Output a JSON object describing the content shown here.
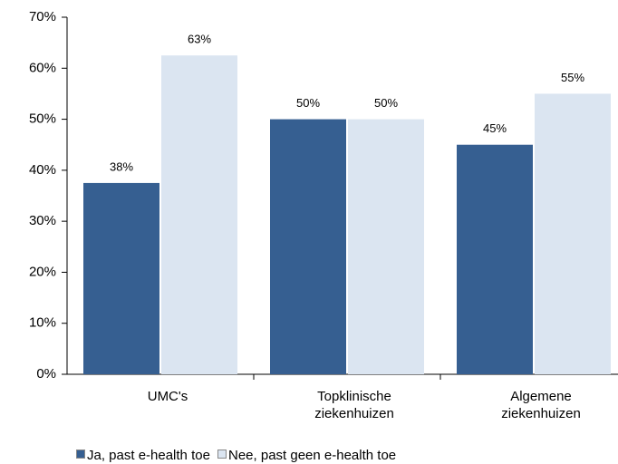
{
  "chart_data": {
    "type": "bar",
    "categories": [
      "UMC's",
      "Topklinische ziekenhuizen",
      "Algemene ziekenhuizen"
    ],
    "series": [
      {
        "name": "Ja, past e-health toe",
        "color": "#365f91",
        "values": [
          37.5,
          50,
          45
        ],
        "value_labels": [
          "38%",
          "50%",
          "45%"
        ]
      },
      {
        "name": "Nee, past geen e-health toe",
        "color": "#dbe5f1",
        "values": [
          62.5,
          50,
          55
        ],
        "value_labels": [
          "63%",
          "50%",
          "55%"
        ]
      }
    ],
    "ylim": [
      0,
      70
    ],
    "yticks": [
      {
        "value": 0,
        "label": "0%"
      },
      {
        "value": 10,
        "label": "10%"
      },
      {
        "value": 20,
        "label": "20%"
      },
      {
        "value": 30,
        "label": "30%"
      },
      {
        "value": 40,
        "label": "40%"
      },
      {
        "value": 50,
        "label": "50%"
      },
      {
        "value": 60,
        "label": "60%"
      },
      {
        "value": 70,
        "label": "70%"
      }
    ],
    "grid": false,
    "legend": "bottom"
  }
}
